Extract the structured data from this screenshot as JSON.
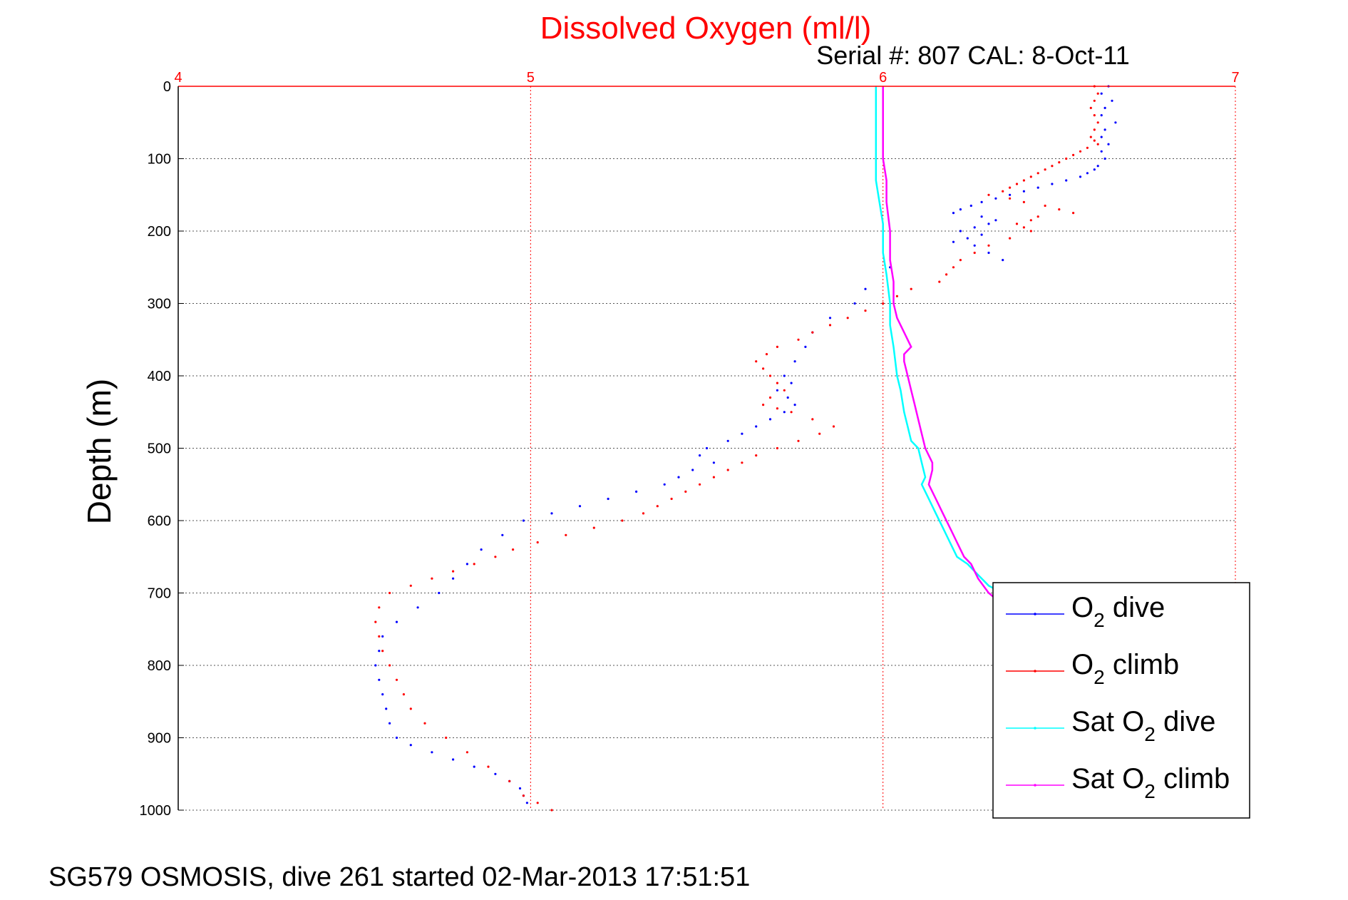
{
  "chart_data": {
    "type": "scatter",
    "title": "Dissolved Oxygen (ml/l)",
    "subtitle": "Serial #: 807  CAL: 8-Oct-11",
    "ylabel": "Depth (m)",
    "xlabel": "",
    "footer": "SG579 OSMOSIS, dive 261 started 02-Mar-2013 17:51:51",
    "xlim": [
      4,
      7
    ],
    "ylim": [
      0,
      1000
    ],
    "y_reversed": true,
    "x_axis_position": "top",
    "x_ticks": [
      4,
      5,
      6,
      7
    ],
    "x_tick_labels": [
      "4",
      "5",
      "6",
      "7"
    ],
    "y_ticks": [
      0,
      100,
      200,
      300,
      400,
      500,
      600,
      700,
      800,
      900,
      1000
    ],
    "y_tick_labels": [
      "0",
      "100",
      "200",
      "300",
      "400",
      "500",
      "600",
      "700",
      "800",
      "900",
      "1000"
    ],
    "grid": true,
    "legend_position": "bottom-right",
    "colors": {
      "title": "#ff0000",
      "xaxis": "#ff0000",
      "grid_x": "#ff0000",
      "grid_y": "#555555"
    },
    "series": [
      {
        "name": "O₂ dive",
        "legend": {
          "main": "O",
          "sub": "2",
          "rest": " dive"
        },
        "color": "#0000ff",
        "style": "dots",
        "x": [
          6.64,
          6.62,
          6.65,
          6.63,
          6.62,
          6.66,
          6.63,
          6.62,
          6.64,
          6.62,
          6.63,
          6.61,
          6.6,
          6.58,
          6.56,
          6.52,
          6.48,
          6.44,
          6.4,
          6.36,
          6.32,
          6.28,
          6.25,
          6.22,
          6.2,
          6.28,
          6.32,
          6.3,
          6.26,
          6.22,
          6.28,
          6.24,
          6.2,
          6.26,
          6.3,
          6.34,
          6.02,
          5.95,
          5.92,
          5.85,
          5.8,
          5.78,
          5.75,
          5.72,
          5.74,
          5.7,
          5.73,
          5.75,
          5.72,
          5.68,
          5.64,
          5.6,
          5.56,
          5.5,
          5.48,
          5.52,
          5.46,
          5.42,
          5.38,
          5.3,
          5.22,
          5.14,
          5.06,
          4.98,
          4.92,
          4.86,
          4.82,
          4.78,
          4.74,
          4.68,
          4.62,
          4.58,
          4.57,
          4.56,
          4.57,
          4.58,
          4.59,
          4.6,
          4.62,
          4.66,
          4.72,
          4.78,
          4.84,
          4.9,
          4.94,
          4.97,
          4.98,
          4.99
        ],
        "y": [
          0,
          10,
          20,
          30,
          40,
          50,
          60,
          70,
          80,
          90,
          100,
          110,
          115,
          120,
          125,
          130,
          135,
          140,
          145,
          150,
          155,
          160,
          165,
          170,
          175,
          180,
          185,
          190,
          195,
          200,
          205,
          210,
          215,
          220,
          230,
          240,
          250,
          280,
          300,
          320,
          340,
          360,
          380,
          400,
          410,
          420,
          430,
          440,
          450,
          460,
          470,
          480,
          490,
          500,
          510,
          520,
          530,
          540,
          550,
          560,
          570,
          580,
          590,
          600,
          620,
          640,
          660,
          680,
          700,
          720,
          740,
          760,
          780,
          800,
          820,
          840,
          860,
          880,
          900,
          910,
          920,
          930,
          940,
          950,
          960,
          970,
          980,
          990
        ]
      },
      {
        "name": "O₂ climb",
        "legend": {
          "main": "O",
          "sub": "2",
          "rest": " climb"
        },
        "color": "#ff0000",
        "style": "dots",
        "x": [
          6.6,
          6.61,
          6.6,
          6.59,
          6.6,
          6.61,
          6.6,
          6.59,
          6.6,
          6.61,
          6.58,
          6.56,
          6.54,
          6.52,
          6.5,
          6.48,
          6.46,
          6.44,
          6.42,
          6.4,
          6.38,
          6.36,
          6.34,
          6.3,
          6.36,
          6.4,
          6.46,
          6.5,
          6.54,
          6.44,
          6.42,
          6.38,
          6.4,
          6.42,
          6.36,
          6.3,
          6.26,
          6.22,
          6.2,
          6.18,
          6.16,
          6.08,
          6.04,
          6.0,
          5.95,
          5.9,
          5.85,
          5.8,
          5.76,
          5.7,
          5.67,
          5.64,
          5.66,
          5.68,
          5.7,
          5.72,
          5.68,
          5.66,
          5.7,
          5.74,
          5.8,
          5.86,
          5.82,
          5.76,
          5.7,
          5.64,
          5.6,
          5.56,
          5.52,
          5.48,
          5.44,
          5.4,
          5.36,
          5.32,
          5.26,
          5.18,
          5.1,
          5.02,
          4.95,
          4.9,
          4.84,
          4.78,
          4.72,
          4.66,
          4.6,
          4.57,
          4.56,
          4.57,
          4.58,
          4.6,
          4.62,
          4.64,
          4.66,
          4.7,
          4.76,
          4.82,
          4.88,
          4.94,
          4.98,
          5.02,
          5.06
        ],
        "y": [
          0,
          10,
          20,
          30,
          40,
          50,
          60,
          70,
          75,
          80,
          85,
          90,
          95,
          100,
          105,
          110,
          115,
          120,
          125,
          130,
          135,
          140,
          145,
          150,
          155,
          160,
          165,
          170,
          175,
          180,
          185,
          190,
          195,
          200,
          210,
          220,
          230,
          240,
          250,
          260,
          270,
          280,
          290,
          300,
          310,
          320,
          330,
          340,
          350,
          360,
          370,
          380,
          390,
          400,
          410,
          420,
          430,
          440,
          445,
          450,
          460,
          470,
          480,
          490,
          500,
          510,
          520,
          530,
          540,
          550,
          560,
          570,
          580,
          590,
          600,
          610,
          620,
          630,
          640,
          650,
          660,
          670,
          680,
          690,
          700,
          720,
          740,
          760,
          780,
          800,
          820,
          840,
          860,
          880,
          900,
          920,
          940,
          960,
          980,
          990,
          1000
        ]
      },
      {
        "name": "Sat O₂ dive",
        "legend": {
          "main": "Sat O",
          "sub": "2",
          "rest": " dive"
        },
        "color": "#00ffff",
        "style": "line",
        "x": [
          5.98,
          5.98,
          5.98,
          5.98,
          5.98,
          5.99,
          6.0,
          6.0,
          6.01,
          6.02,
          6.02,
          6.03,
          6.04,
          6.05,
          6.06,
          6.07,
          6.08,
          6.1,
          6.11,
          6.12,
          6.11,
          6.13,
          6.15,
          6.17,
          6.19,
          6.21,
          6.24,
          6.26,
          6.28,
          6.3,
          6.34,
          6.4,
          6.5,
          6.6,
          6.62
        ],
        "y": [
          0,
          50,
          100,
          125,
          130,
          160,
          190,
          230,
          260,
          300,
          330,
          360,
          400,
          420,
          450,
          470,
          490,
          500,
          520,
          540,
          550,
          570,
          590,
          610,
          630,
          650,
          660,
          670,
          680,
          690,
          700,
          720,
          760,
          850,
          1000
        ]
      },
      {
        "name": "Sat O₂ climb",
        "legend": {
          "main": "Sat O",
          "sub": "2",
          "rest": " climb"
        },
        "color": "#ff00ff",
        "style": "line",
        "x": [
          6.0,
          6.0,
          6.0,
          6.01,
          6.01,
          6.02,
          6.02,
          6.03,
          6.03,
          6.04,
          6.06,
          6.08,
          6.06,
          6.06,
          6.07,
          6.08,
          6.09,
          6.1,
          6.11,
          6.12,
          6.13,
          6.14,
          6.14,
          6.13,
          6.15,
          6.17,
          6.19,
          6.21,
          6.23,
          6.25,
          6.27,
          6.3,
          6.35,
          6.42,
          6.52,
          6.6,
          6.62
        ],
        "y": [
          0,
          50,
          100,
          130,
          160,
          200,
          240,
          270,
          300,
          320,
          340,
          360,
          370,
          380,
          400,
          420,
          440,
          460,
          480,
          500,
          510,
          520,
          530,
          550,
          570,
          590,
          610,
          630,
          650,
          660,
          680,
          700,
          720,
          760,
          850,
          950,
          1000
        ]
      }
    ]
  }
}
